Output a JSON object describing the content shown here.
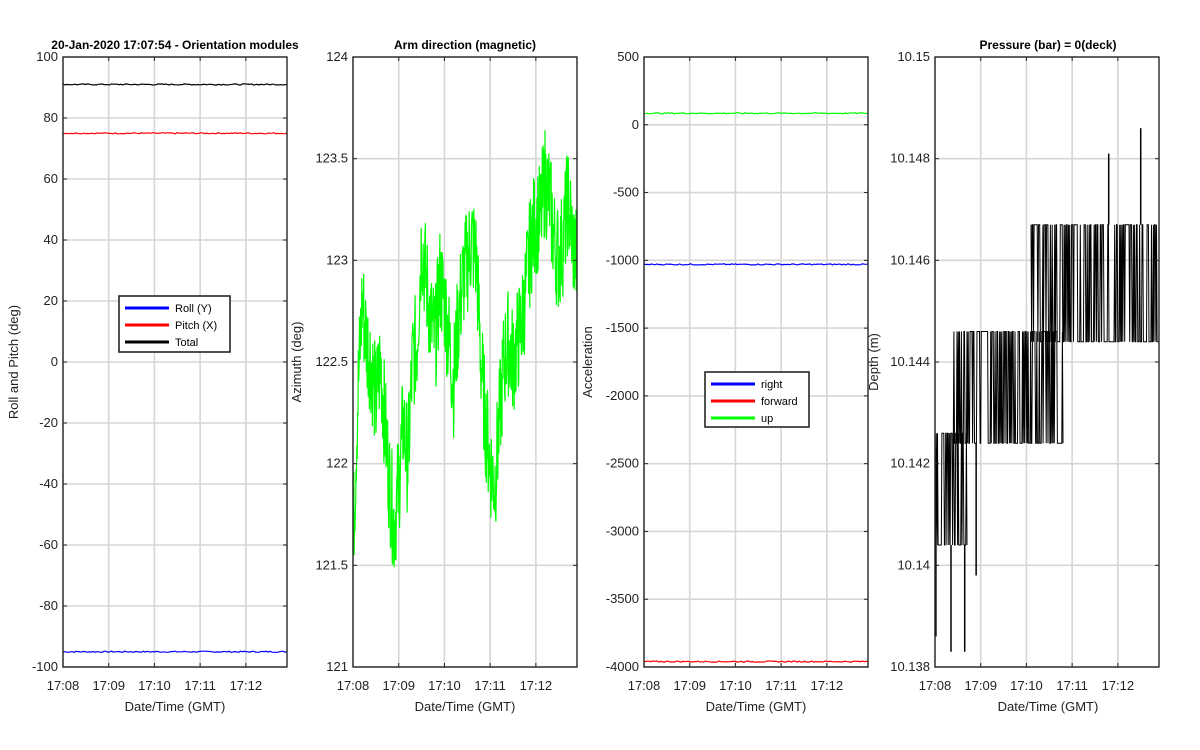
{
  "chart_data": [
    {
      "type": "line",
      "title": "20-Jan-2020 17:07:54 - Orientation modules",
      "xlabel": "Date/Time (GMT)",
      "ylabel": "Roll and Pitch (deg)",
      "x_ticks": [
        "17:08",
        "17:09",
        "17:10",
        "17:11",
        "17:12"
      ],
      "x_range_min": [
        0,
        4.9
      ],
      "ylim": [
        -100,
        100
      ],
      "y_ticks": [
        -100,
        -80,
        -60,
        -40,
        -20,
        0,
        20,
        40,
        60,
        80,
        100
      ],
      "y_tick_labels": [
        "-100",
        "-80",
        "-60",
        "-40",
        "-20",
        "0",
        "20",
        "40",
        "60",
        "80",
        "100"
      ],
      "grid": true,
      "legend": "center",
      "series": [
        {
          "name": "Roll (Y)",
          "color": "#0000ff",
          "values": [
            -95,
            -95,
            -95,
            -95,
            -95,
            -95,
            -95,
            -95,
            -95,
            -95,
            -95
          ]
        },
        {
          "name": "Pitch (X)",
          "color": "#ff0000",
          "values": [
            75,
            75,
            75,
            75,
            75,
            75,
            75,
            75,
            75,
            75,
            75
          ]
        },
        {
          "name": "Total",
          "color": "#000000",
          "values": [
            91,
            91,
            91,
            91,
            91,
            91,
            91,
            91,
            91,
            91,
            91
          ]
        }
      ]
    },
    {
      "type": "line",
      "title": "Arm direction (magnetic)",
      "xlabel": "Date/Time (GMT)",
      "ylabel": "Azimuth (deg)",
      "x_ticks": [
        "17:08",
        "17:09",
        "17:10",
        "17:11",
        "17:12"
      ],
      "x_range_min": [
        0,
        4.9
      ],
      "ylim": [
        121,
        124
      ],
      "y_ticks": [
        121,
        121.5,
        122,
        122.5,
        123,
        123.5,
        124
      ],
      "y_tick_labels": [
        "121",
        "121.5",
        "122",
        "122.5",
        "123",
        "123.5",
        "124"
      ],
      "grid": true,
      "series": [
        {
          "name": "Azimuth",
          "color": "#00ff00",
          "x": [
            0.0,
            0.1,
            0.2,
            0.3,
            0.4,
            0.5,
            0.6,
            0.7,
            0.8,
            0.9,
            1.0,
            1.1,
            1.2,
            1.3,
            1.4,
            1.5,
            1.6,
            1.7,
            1.8,
            1.9,
            2.0,
            2.1,
            2.2,
            2.3,
            2.4,
            2.5,
            2.6,
            2.7,
            2.8,
            2.9,
            3.0,
            3.1,
            3.2,
            3.3,
            3.4,
            3.5,
            3.6,
            3.7,
            3.8,
            3.9,
            4.0,
            4.1,
            4.2,
            4.3,
            4.4,
            4.5,
            4.6,
            4.7,
            4.8,
            4.9
          ],
          "values": [
            121.6,
            122.3,
            122.8,
            122.6,
            122.5,
            122.3,
            122.5,
            122.2,
            121.9,
            121.7,
            121.9,
            122.2,
            122.0,
            122.5,
            122.6,
            123.1,
            122.9,
            122.7,
            122.6,
            122.9,
            122.8,
            122.6,
            122.4,
            122.7,
            122.9,
            123.0,
            123.1,
            123.0,
            122.5,
            122.2,
            122.0,
            121.9,
            122.2,
            122.5,
            122.6,
            122.5,
            122.6,
            122.7,
            122.9,
            123.1,
            123.2,
            123.2,
            123.4,
            123.3,
            123.1,
            123.0,
            123.1,
            123.3,
            123.1,
            123.0
          ]
        }
      ]
    },
    {
      "type": "line",
      "title": "",
      "xlabel": "Date/Time (GMT)",
      "ylabel": "Acceleration",
      "x_ticks": [
        "17:08",
        "17:09",
        "17:10",
        "17:11",
        "17:12"
      ],
      "x_range_min": [
        0,
        4.9
      ],
      "ylim": [
        -4000,
        500
      ],
      "y_ticks": [
        -4000,
        -3500,
        -3000,
        -2500,
        -2000,
        -1500,
        -1000,
        -500,
        0,
        500
      ],
      "y_tick_labels": [
        "-4000",
        "-3500",
        "-3000",
        "-2500",
        "-2000",
        "-1500",
        "-1000",
        "-500",
        "0",
        "500"
      ],
      "grid": true,
      "legend": "center",
      "series": [
        {
          "name": "right",
          "color": "#0000ff",
          "values": [
            -1030,
            -1030,
            -1030,
            -1030,
            -1030,
            -1030,
            -1030,
            -1030,
            -1030,
            -1030,
            -1030
          ]
        },
        {
          "name": "forward",
          "color": "#ff0000",
          "values": [
            -3960,
            -3960,
            -3960,
            -3960,
            -3960,
            -3960,
            -3960,
            -3960,
            -3960,
            -3960,
            -3960
          ]
        },
        {
          "name": "up",
          "color": "#00ff00",
          "values": [
            85,
            85,
            85,
            85,
            85,
            85,
            85,
            85,
            85,
            85,
            85
          ]
        }
      ]
    },
    {
      "type": "line",
      "title": "Pressure (bar) = 0(deck)",
      "xlabel": "Date/Time (GMT)",
      "ylabel": "Depth (m)",
      "x_ticks": [
        "17:08",
        "17:09",
        "17:10",
        "17:11",
        "17:12"
      ],
      "x_range_min": [
        0,
        4.9
      ],
      "ylim": [
        10.138,
        10.15
      ],
      "y_ticks": [
        10.138,
        10.14,
        10.142,
        10.144,
        10.146,
        10.148,
        10.15
      ],
      "y_tick_labels": [
        "10.138",
        "10.14",
        "10.142",
        "10.144",
        "10.146",
        "10.148",
        "10.15"
      ],
      "grid": true,
      "series": [
        {
          "name": "Depth",
          "color": "#000000",
          "levels": [
            {
              "x_start": 0.0,
              "x_end": 0.7,
              "low": 10.1404,
              "high": 10.1426
            },
            {
              "x_start": 0.4,
              "x_end": 2.8,
              "low": 10.1424,
              "high": 10.1446
            },
            {
              "x_start": 2.1,
              "x_end": 4.9,
              "low": 10.1444,
              "high": 10.1467
            }
          ],
          "spikes_high": [
            {
              "x": 3.8,
              "value": 10.1481
            },
            {
              "x": 4.5,
              "value": 10.1486
            }
          ],
          "spikes_low": [
            {
              "x": 0.02,
              "value": 10.1386
            },
            {
              "x": 0.35,
              "value": 10.1383
            },
            {
              "x": 0.65,
              "value": 10.1383
            },
            {
              "x": 0.9,
              "value": 10.1398
            }
          ]
        }
      ]
    }
  ]
}
